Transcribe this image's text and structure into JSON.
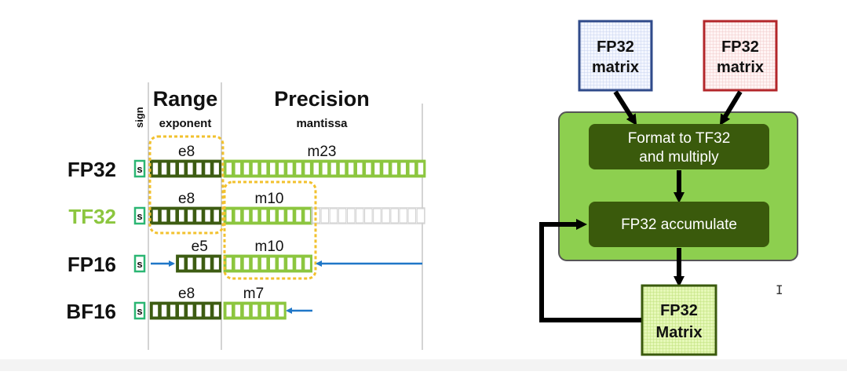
{
  "left": {
    "headers": {
      "sign": "sign",
      "range": "Range",
      "exponent": "exponent",
      "precision": "Precision",
      "mantissa": "mantissa"
    },
    "rows": [
      {
        "name": "FP32",
        "sign": "s",
        "exp_label": "e8",
        "exp_bits": 8,
        "man_label": "m23",
        "man_bits": 23,
        "name_color": "#111111"
      },
      {
        "name": "TF32",
        "sign": "s",
        "exp_label": "e8",
        "exp_bits": 8,
        "man_label": "m10",
        "man_bits": 10,
        "name_color": "#8cc63f"
      },
      {
        "name": "FP16",
        "sign": "s",
        "exp_label": "e5",
        "exp_bits": 5,
        "man_label": "m10",
        "man_bits": 10,
        "name_color": "#111111"
      },
      {
        "name": "BF16",
        "sign": "s",
        "exp_label": "e8",
        "exp_bits": 8,
        "man_label": "m7",
        "man_bits": 7,
        "name_color": "#111111"
      }
    ]
  },
  "right": {
    "input_a": {
      "line1": "FP32",
      "line2": "matrix"
    },
    "input_b": {
      "line1": "FP32",
      "line2": "matrix"
    },
    "step1": {
      "line1": "Format to TF32",
      "line2": "and multiply"
    },
    "step2": {
      "label": "FP32 accumulate"
    },
    "output": {
      "line1": "FP32",
      "line2": "Matrix"
    }
  },
  "colors": {
    "exp_dark": "#3d5c12",
    "man_light": "#8cc63f",
    "sign_green": "#2bb673",
    "highlight": "#f2c12e",
    "arrow_blue": "#1f77c8",
    "tc_bg": "#8dcf4f",
    "tc_dark": "#3a5a0c",
    "box_blue": "#2f4a8a",
    "box_red": "#b3262a"
  }
}
